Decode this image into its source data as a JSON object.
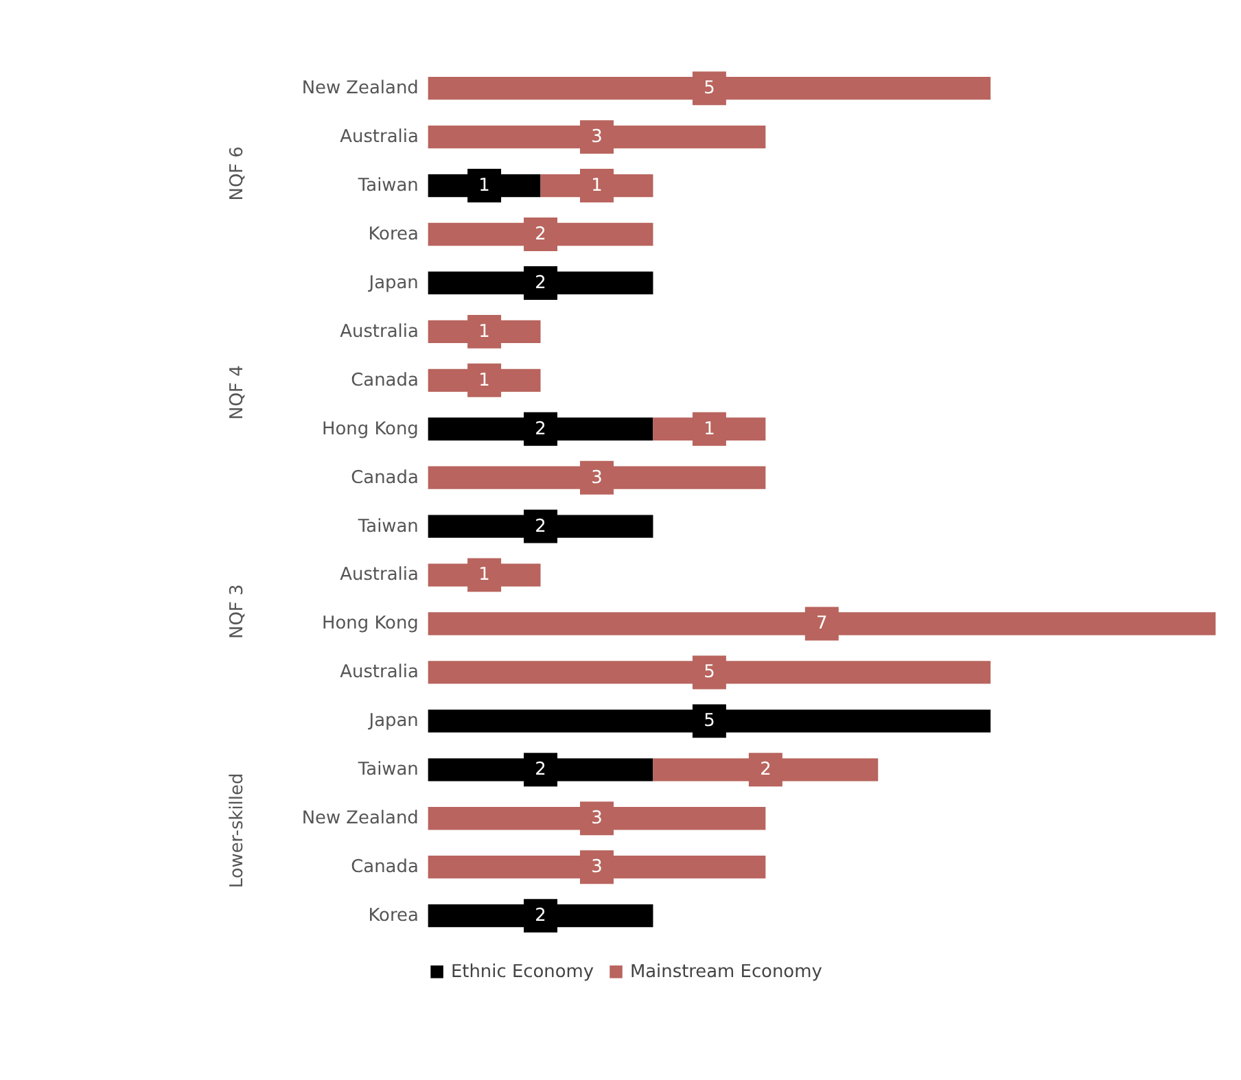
{
  "chart_data": {
    "type": "bar",
    "orientation": "horizontal",
    "stacked": true,
    "data_labels": true,
    "legend": "bottom",
    "grid": false,
    "tick_labels": "y",
    "categories": [
      "New Zealand",
      "Australia",
      "Taiwan",
      "Korea",
      "Japan",
      "Australia",
      "Canada",
      "Hong Kong",
      "Canada",
      "Taiwan",
      "Australia",
      "Hong Kong",
      "Australia",
      "Japan",
      "Taiwan",
      "New Zealand",
      "Canada",
      "Korea"
    ],
    "series": [
      {
        "name": "Ethnic Economy",
        "color": "#000000",
        "values": [
          null,
          null,
          1,
          null,
          2,
          null,
          null,
          2,
          null,
          2,
          null,
          null,
          null,
          5,
          2,
          null,
          null,
          2
        ]
      },
      {
        "name": "Mainstream Economy",
        "color": "#b9645e",
        "values": [
          5,
          3,
          1,
          2,
          null,
          1,
          1,
          1,
          3,
          null,
          1,
          7,
          5,
          null,
          2,
          3,
          3,
          null
        ]
      }
    ],
    "annotations": [
      "NQF 6",
      "NQF 4",
      "NQF 3",
      "Lower-skilled"
    ]
  }
}
